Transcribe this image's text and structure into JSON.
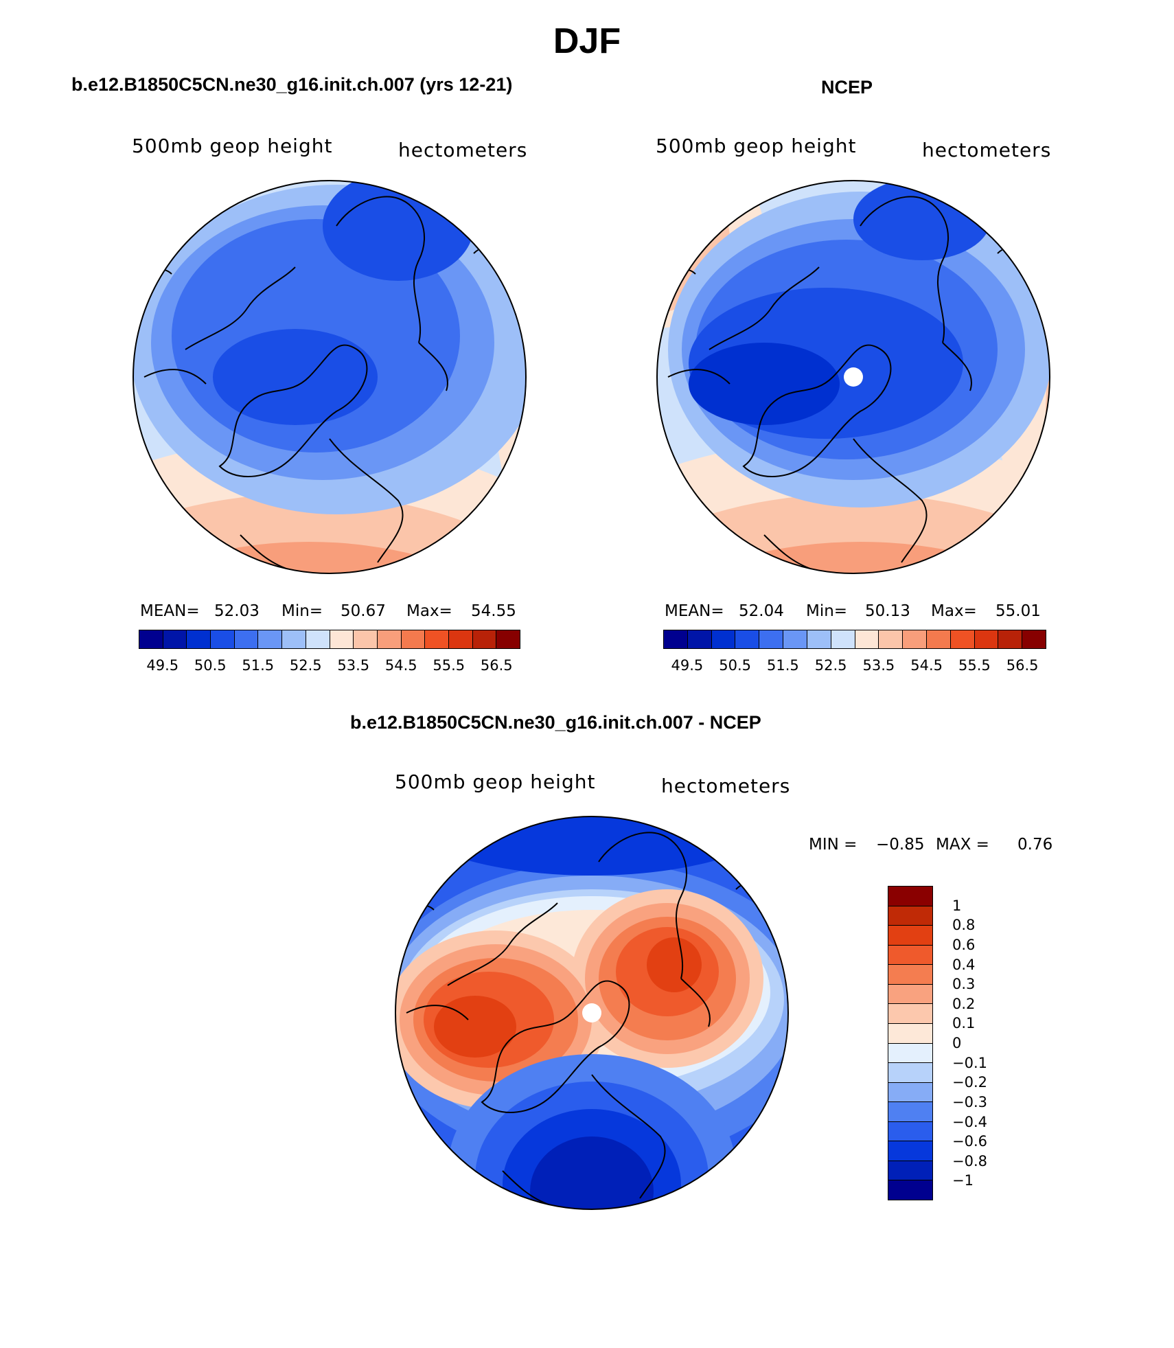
{
  "title": "DJF",
  "panels": [
    {
      "title": "b.e12.B1850C5CN.ne30_g16.init.ch.007 (yrs 12-21)",
      "left_label": "500mb geop height",
      "right_label": "hectometers",
      "stats": {
        "mean_label": "MEAN=",
        "mean": "52.03",
        "min_label": "Min=",
        "min": "50.67",
        "max_label": "Max=",
        "max": "54.55"
      }
    },
    {
      "title": "NCEP",
      "left_label": "500mb geop height",
      "right_label": "hectometers",
      "stats": {
        "mean_label": "MEAN=",
        "mean": "52.04",
        "min_label": "Min=",
        "min": "50.13",
        "max_label": "Max=",
        "max": "55.01"
      }
    },
    {
      "title": "b.e12.B1850C5CN.ne30_g16.init.ch.007 - NCEP",
      "left_label": "500mb geop height",
      "right_label": "hectometers",
      "stats": {
        "min_label": "MIN =",
        "min": "−0.85",
        "max_label": "MAX =",
        "max": "0.76"
      }
    }
  ],
  "colorbar_abs": {
    "colors": [
      "#00008f",
      "#0015a8",
      "#0030d0",
      "#1a4ee6",
      "#3d6ff0",
      "#6a96f5",
      "#9dbff8",
      "#cfe2fb",
      "#fde6d6",
      "#fbc5aa",
      "#f89e7b",
      "#f47a4e",
      "#ef5224",
      "#db3610",
      "#b82208",
      "#870000"
    ],
    "tick_labels": [
      "49.5",
      "50.5",
      "51.5",
      "52.5",
      "53.5",
      "54.5",
      "55.5",
      "56.5"
    ]
  },
  "colorbar_diff": {
    "colors": [
      "#00008f",
      "#0020b8",
      "#0638dc",
      "#2a5ded",
      "#4f80f2",
      "#86acf6",
      "#b7d2fa",
      "#e4f0fd",
      "#fde8d8",
      "#fcc8ad",
      "#f9a27f",
      "#f47d50",
      "#ef5a2c",
      "#e24012",
      "#c02a06",
      "#8a0000"
    ],
    "tick_labels": [
      "1",
      "0.8",
      "0.6",
      "0.4",
      "0.3",
      "0.2",
      "0.1",
      "0",
      "−0.1",
      "−0.2",
      "−0.3",
      "−0.4",
      "−0.6",
      "−0.8",
      "−1"
    ]
  }
}
